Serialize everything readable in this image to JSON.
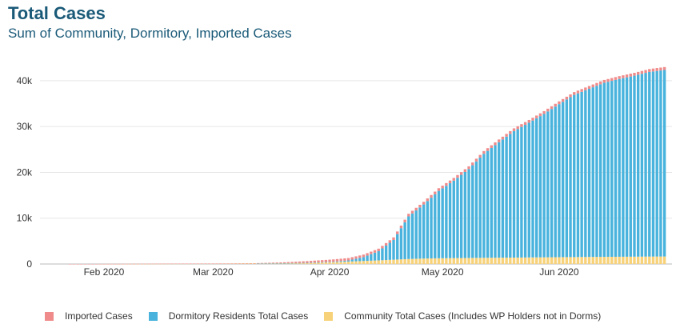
{
  "header": {
    "title": "Total Cases",
    "subtitle": "Sum of Community, Dormitory, Imported Cases"
  },
  "chart_data": {
    "type": "bar",
    "stacked": true,
    "title": "Total Cases",
    "subtitle": "Sum of Community, Dormitory, Imported Cases",
    "ylim": [
      0,
      44000
    ],
    "y_ticks": [
      0,
      10000,
      20000,
      30000,
      40000
    ],
    "y_tick_labels": [
      "0",
      "10k",
      "20k",
      "30k",
      "40k"
    ],
    "x_tick_labels": [
      "Feb 2020",
      "Mar 2020",
      "Apr 2020",
      "May 2020",
      "Jun 2020"
    ],
    "x_tick_dates": [
      "2020-02-01",
      "2020-03-01",
      "2020-04-01",
      "2020-05-01",
      "2020-06-01"
    ],
    "grid": true,
    "legend_position": "bottom",
    "series": [
      {
        "name": "Imported Cases",
        "color": "#f08b8b"
      },
      {
        "name": "Dormitory Residents Total Cases",
        "color": "#49b3dd"
      },
      {
        "name": "Community Total Cases (Includes WP Holders not in Dorms)",
        "color": "#f7d27a"
      }
    ],
    "data": [
      {
        "date": "2020-01-23",
        "imported": 1,
        "dorm": 0,
        "community": 0
      },
      {
        "date": "2020-01-30",
        "imported": 13,
        "dorm": 0,
        "community": 0
      },
      {
        "date": "2020-02-06",
        "imported": 21,
        "dorm": 0,
        "community": 9
      },
      {
        "date": "2020-02-13",
        "imported": 24,
        "dorm": 0,
        "community": 34
      },
      {
        "date": "2020-02-20",
        "imported": 24,
        "dorm": 0,
        "community": 60
      },
      {
        "date": "2020-02-27",
        "imported": 25,
        "dorm": 0,
        "community": 71
      },
      {
        "date": "2020-03-05",
        "imported": 36,
        "dorm": 0,
        "community": 81
      },
      {
        "date": "2020-03-12",
        "imported": 64,
        "dorm": 0,
        "community": 114
      },
      {
        "date": "2020-03-19",
        "imported": 180,
        "dorm": 2,
        "community": 160
      },
      {
        "date": "2020-03-26",
        "imported": 380,
        "dorm": 30,
        "community": 221
      },
      {
        "date": "2020-04-02",
        "imported": 500,
        "dorm": 100,
        "community": 400
      },
      {
        "date": "2020-04-06",
        "imported": 520,
        "dorm": 250,
        "community": 530
      },
      {
        "date": "2020-04-10",
        "imported": 540,
        "dorm": 850,
        "community": 660
      },
      {
        "date": "2020-04-14",
        "imported": 555,
        "dorm": 2000,
        "community": 790
      },
      {
        "date": "2020-04-18",
        "imported": 565,
        "dorm": 4300,
        "community": 940
      },
      {
        "date": "2020-04-22",
        "imported": 575,
        "dorm": 9300,
        "community": 1090
      },
      {
        "date": "2020-04-26",
        "imported": 585,
        "dorm": 11800,
        "community": 1190
      },
      {
        "date": "2020-04-30",
        "imported": 590,
        "dorm": 14700,
        "community": 1250
      },
      {
        "date": "2020-05-04",
        "imported": 595,
        "dorm": 16900,
        "community": 1290
      },
      {
        "date": "2020-05-08",
        "imported": 600,
        "dorm": 19400,
        "community": 1320
      },
      {
        "date": "2020-05-12",
        "imported": 600,
        "dorm": 22700,
        "community": 1350
      },
      {
        "date": "2020-05-16",
        "imported": 600,
        "dorm": 25200,
        "community": 1380
      },
      {
        "date": "2020-05-20",
        "imported": 605,
        "dorm": 27600,
        "community": 1400
      },
      {
        "date": "2020-05-24",
        "imported": 605,
        "dorm": 29400,
        "community": 1430
      },
      {
        "date": "2020-05-28",
        "imported": 605,
        "dorm": 31300,
        "community": 1460
      },
      {
        "date": "2020-06-01",
        "imported": 610,
        "dorm": 33400,
        "community": 1490
      },
      {
        "date": "2020-06-05",
        "imported": 610,
        "dorm": 35400,
        "community": 1510
      },
      {
        "date": "2020-06-09",
        "imported": 615,
        "dorm": 36700,
        "community": 1540
      },
      {
        "date": "2020-06-13",
        "imported": 615,
        "dorm": 38000,
        "community": 1560
      },
      {
        "date": "2020-06-17",
        "imported": 620,
        "dorm": 38800,
        "community": 1580
      },
      {
        "date": "2020-06-21",
        "imported": 625,
        "dorm": 39500,
        "community": 1600
      },
      {
        "date": "2020-06-25",
        "imported": 630,
        "dorm": 40300,
        "community": 1620
      },
      {
        "date": "2020-06-29",
        "imported": 640,
        "dorm": 40700,
        "community": 1640
      }
    ]
  }
}
